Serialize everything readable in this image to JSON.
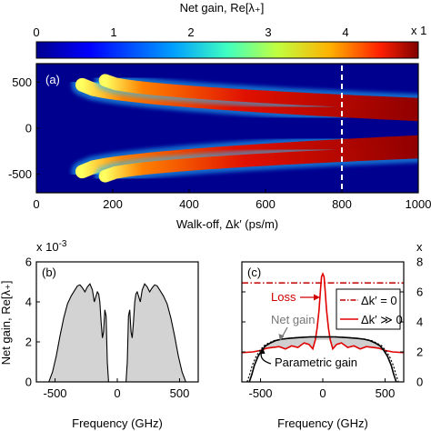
{
  "colorbar": {
    "title": "Net gain, Re[λ₊]",
    "ticks": [
      "0",
      "1",
      "2",
      "3",
      "4"
    ],
    "corner_label": "x 1",
    "colors": [
      "#00008f",
      "#0000ff",
      "#00a0ff",
      "#40ffc0",
      "#c0ff40",
      "#ffb000",
      "#ff2000",
      "#800000"
    ]
  },
  "chart_data": [
    {
      "id": "a",
      "type": "heatmap",
      "panel_label": "(a)",
      "xlabel": "Walk-off, Δk′ (ps/m)",
      "ylabel": "",
      "xlim": [
        0,
        1000
      ],
      "ylim": [
        -700,
        700
      ],
      "x_ticks": [
        "0",
        "200",
        "400",
        "600",
        "800",
        "1000"
      ],
      "y_ticks": [
        "500",
        "0",
        "-500"
      ],
      "x_tick_values": [
        0,
        200,
        400,
        600,
        800,
        1000
      ],
      "y_tick_values": [
        500,
        0,
        -500
      ],
      "marker_line_x": 800,
      "bands": [
        {
          "start_x": 120,
          "freq_at_start": 470,
          "freq_at_end": 150,
          "peak": 4.5
        },
        {
          "start_x": 180,
          "freq_at_start": 520,
          "freq_at_end": 260,
          "peak": 4.0
        },
        {
          "start_x": 120,
          "freq_at_start": -470,
          "freq_at_end": -150,
          "peak": 4.5
        },
        {
          "start_x": 180,
          "freq_at_start": -520,
          "freq_at_end": -260,
          "peak": 4.0
        }
      ],
      "value_scale": "x 10^-3"
    },
    {
      "id": "b",
      "type": "area",
      "panel_label": "(b)",
      "multiplier": "x 10",
      "multiplier_exp": "-3",
      "xlabel": "Frequency (GHz)",
      "ylabel": "Net gain, Re[λ₊]",
      "xlim": [
        -650,
        650
      ],
      "ylim": [
        0,
        6
      ],
      "x_ticks": [
        "-500",
        "0",
        "500"
      ],
      "y_ticks": [
        "0",
        "2",
        "4",
        "6"
      ],
      "x_tick_values": [
        -500,
        0,
        500
      ],
      "y_tick_values": [
        0,
        2,
        4,
        6
      ],
      "x": [
        -550,
        -520,
        -490,
        -460,
        -430,
        -400,
        -370,
        -340,
        -320,
        -300,
        -280,
        -260,
        -240,
        -220,
        -200,
        -185,
        -170,
        -160,
        -150,
        -140,
        -130,
        -120,
        -110,
        -100,
        -90,
        -80,
        -70,
        -60,
        -45,
        -30,
        -15,
        0,
        15,
        30,
        45,
        60,
        70,
        80,
        90,
        100,
        110,
        120,
        130,
        140,
        150,
        160,
        170,
        185,
        200,
        220,
        240,
        260,
        280,
        300,
        320,
        340,
        370,
        400,
        430,
        460,
        490,
        520,
        550
      ],
      "y": [
        0.0,
        0.5,
        1.3,
        2.3,
        3.2,
        3.9,
        4.3,
        4.6,
        4.8,
        4.85,
        4.7,
        4.5,
        4.75,
        4.9,
        4.6,
        4.0,
        4.3,
        4.5,
        4.4,
        4.0,
        3.0,
        2.2,
        2.5,
        3.6,
        3.3,
        1.0,
        0.0,
        0.0,
        0.0,
        0.0,
        0.0,
        0.0,
        0.0,
        0.0,
        0.0,
        0.0,
        0.0,
        1.0,
        3.3,
        3.6,
        2.5,
        2.2,
        3.0,
        4.0,
        4.4,
        4.5,
        4.3,
        4.0,
        4.6,
        4.9,
        4.75,
        4.5,
        4.7,
        4.85,
        4.8,
        4.6,
        4.3,
        3.9,
        3.2,
        2.3,
        1.3,
        0.5,
        0.0
      ],
      "fill_color": "#d3d3d3"
    },
    {
      "id": "c",
      "type": "line",
      "panel_label": "(c)",
      "multiplier": "x",
      "xlabel": "Frequency (GHz)",
      "ylabel": "",
      "xlim": [
        -650,
        650
      ],
      "ylim": [
        0,
        8
      ],
      "x_ticks": [
        "-500",
        "0",
        "500"
      ],
      "y_ticks": [
        "0",
        "2",
        "4",
        "6",
        "8"
      ],
      "x_tick_values": [
        -500,
        0,
        500
      ],
      "y_tick_values": [
        0,
        2,
        4,
        6,
        8
      ],
      "annotations": {
        "loss": "Loss",
        "net_gain": "Net gain",
        "parametric_gain": "Parametric gain"
      },
      "legend": [
        {
          "label": "Δk′ = 0",
          "style": "dash-dot",
          "color": "#c00000"
        },
        {
          "label": "Δk′ ≫ 0",
          "style": "solid",
          "color": "#e00000"
        }
      ],
      "series": [
        {
          "name": "Δk′ = 0",
          "kind": "loss-dashdot",
          "x": [
            -650,
            650
          ],
          "y": [
            6.6,
            6.6
          ]
        },
        {
          "name": "Δk′ ≫ 0",
          "kind": "loss-solid",
          "x": [
            -650,
            -560,
            -500,
            -450,
            -400,
            -350,
            -300,
            -250,
            -200,
            -150,
            -110,
            -80,
            -60,
            -45,
            -30,
            -20,
            -10,
            0,
            10,
            20,
            30,
            45,
            60,
            80,
            110,
            150,
            200,
            250,
            300,
            350,
            400,
            450,
            500,
            560,
            650
          ],
          "y": [
            1.95,
            2.0,
            2.1,
            2.25,
            2.3,
            2.35,
            2.2,
            2.4,
            2.3,
            2.6,
            2.5,
            2.2,
            2.8,
            3.6,
            4.8,
            6.0,
            7.0,
            7.2,
            7.0,
            6.0,
            4.8,
            3.6,
            2.8,
            2.2,
            2.5,
            2.6,
            2.3,
            2.4,
            2.2,
            2.35,
            2.3,
            2.25,
            2.1,
            2.0,
            1.95
          ]
        },
        {
          "name": "Parametric gain",
          "kind": "gain",
          "x": [
            -590,
            -570,
            -550,
            -520,
            -490,
            -460,
            -420,
            -380,
            -330,
            -270,
            -200,
            -100,
            0,
            100,
            200,
            270,
            330,
            380,
            420,
            460,
            490,
            520,
            550,
            570,
            590
          ],
          "y": [
            0.0,
            0.5,
            1.1,
            1.7,
            2.1,
            2.4,
            2.6,
            2.75,
            2.85,
            2.9,
            2.95,
            3.0,
            3.0,
            3.0,
            2.95,
            2.9,
            2.85,
            2.75,
            2.6,
            2.4,
            2.1,
            1.7,
            1.1,
            0.5,
            0.0
          ]
        }
      ]
    }
  ]
}
